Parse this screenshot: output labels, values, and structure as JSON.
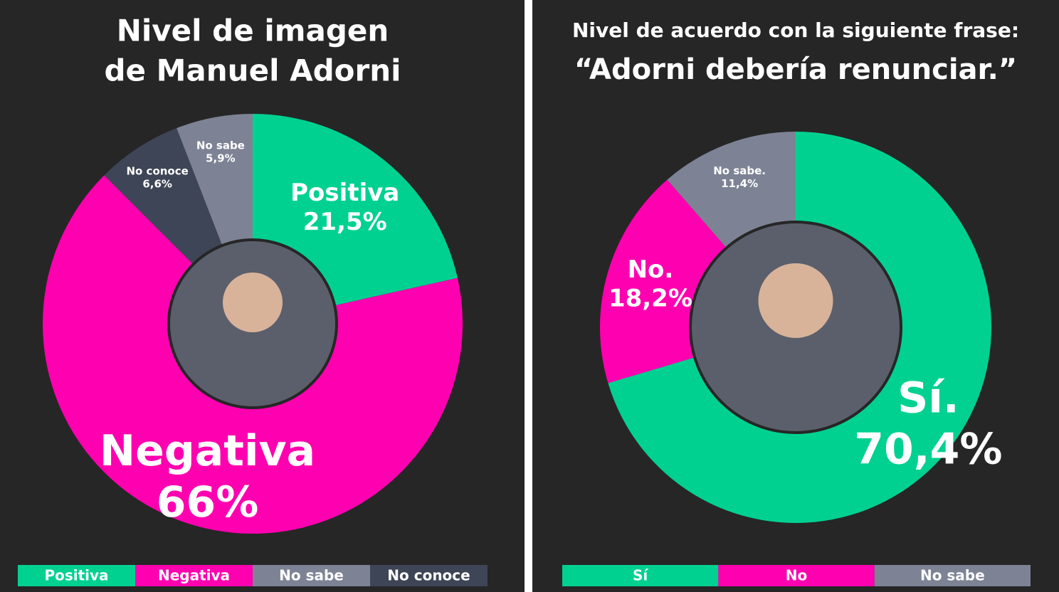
{
  "chart_data": [
    {
      "type": "donut",
      "title": [
        "Nivel de imagen",
        "de  Manuel Adorni"
      ],
      "labels": [
        "Positiva",
        "Negativa",
        "No conoce",
        "No sabe"
      ],
      "values": [
        21.5,
        66,
        6.6,
        5.9
      ],
      "value_labels": [
        "21,5%",
        "66%",
        "6,6%",
        "5,9%"
      ],
      "colors": [
        "#00d191",
        "#ff00b0",
        "#3e4556",
        "#7d8394"
      ],
      "legend": [
        {
          "name": "Positiva",
          "color": "#00d191"
        },
        {
          "name": "Negativa",
          "color": "#ff00b0"
        },
        {
          "name": "No sabe",
          "color": "#7d8394"
        },
        {
          "name": "No conoce",
          "color": "#3e4556"
        }
      ]
    },
    {
      "type": "donut",
      "title": [
        "Nivel de acuerdo con la siguiente frase:"
      ],
      "subtitle": "“Adorni debería renunciar.”",
      "labels": [
        "Sí.",
        "No.",
        "No sabe."
      ],
      "values": [
        70.4,
        18.2,
        11.4
      ],
      "value_labels": [
        "70,4%",
        "18,2%",
        "11,4%"
      ],
      "colors": [
        "#00d191",
        "#ff00b0",
        "#7d8394"
      ],
      "legend": [
        {
          "name": "Sí",
          "color": "#00d191"
        },
        {
          "name": "No",
          "color": "#ff00b0"
        },
        {
          "name": "No sabe",
          "color": "#7d8394"
        }
      ]
    }
  ]
}
